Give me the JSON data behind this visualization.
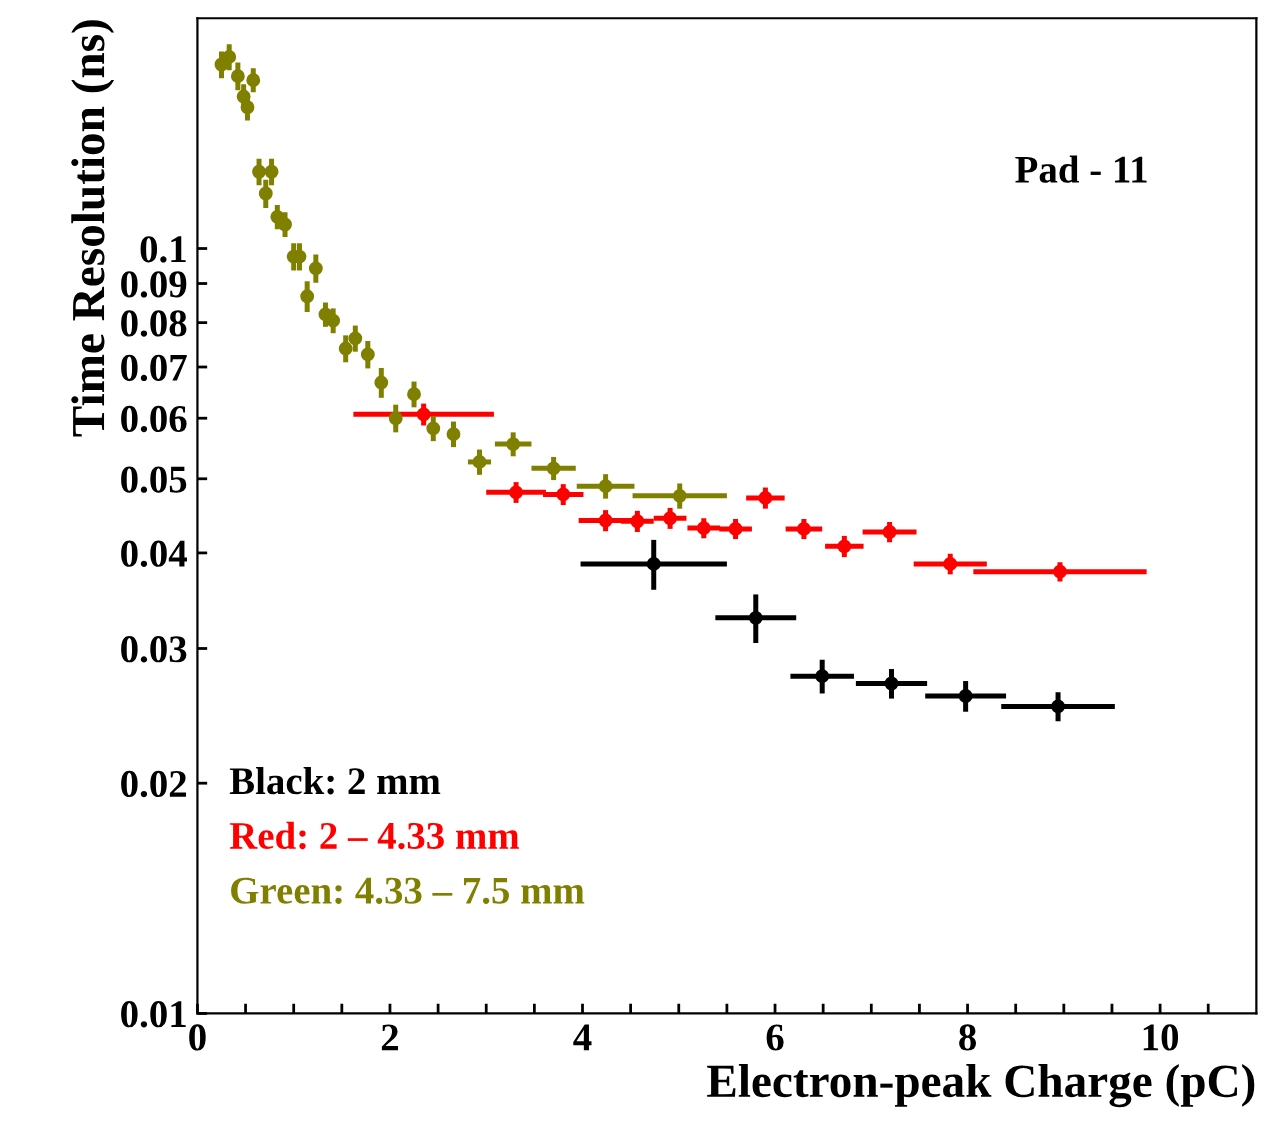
{
  "chart_data": {
    "type": "scatter",
    "xlabel": "Electron-peak Charge (pC)",
    "ylabel": "Time Resolution (ns)",
    "annotations": [
      "Pad - 11"
    ],
    "log": "y",
    "xlim": [
      0,
      11
    ],
    "ylim": [
      0.01,
      0.2
    ],
    "xticks": [
      0,
      {
        "value": 0.5,
        "label": null
      },
      {
        "value": 1,
        "label": null
      },
      {
        "value": 1.5,
        "label": null
      },
      2,
      {
        "value": 2.5,
        "label": null
      },
      {
        "value": 3,
        "label": null
      },
      {
        "value": 3.5,
        "label": null
      },
      4,
      {
        "value": 4.5,
        "label": null
      },
      {
        "value": 5,
        "label": null
      },
      {
        "value": 5.5,
        "label": null
      },
      6,
      {
        "value": 6.5,
        "label": null
      },
      {
        "value": 7,
        "label": null
      },
      {
        "value": 7.5,
        "label": null
      },
      8,
      {
        "value": 8.5,
        "label": null
      },
      {
        "value": 9,
        "label": null
      },
      {
        "value": 9.5,
        "label": null
      },
      10,
      {
        "value": 10.5,
        "label": null
      }
    ],
    "yticks": [
      0.01,
      0.02,
      0.03,
      0.04,
      0.05,
      0.06,
      0.07,
      0.08,
      0.09,
      0.1
    ],
    "grid": false,
    "legend": "bottom left",
    "marker": "circle",
    "series": [
      {
        "name": "Black: 2 mm",
        "color": "#000000",
        "x": [
          4.74,
          5.8,
          6.49,
          7.21,
          7.98,
          8.94
        ],
        "values": [
          0.0387,
          0.0329,
          0.0276,
          0.027,
          0.026,
          0.0252
        ],
        "errors": [
          0.0029,
          0.0024,
          0.0014,
          0.0012,
          0.0012,
          0.0011
        ],
        "xerrors": [
          0.76,
          0.42,
          0.33,
          0.37,
          0.42,
          0.59
        ]
      },
      {
        "name": "Red: 2 – 4.33 mm",
        "color": "#ff0000",
        "x": [
          2.35,
          3.31,
          3.8,
          4.24,
          4.57,
          4.91,
          5.26,
          5.59,
          5.9,
          6.3,
          6.72,
          7.19,
          7.82,
          8.96
        ],
        "values": [
          0.0607,
          0.048,
          0.0477,
          0.0441,
          0.044,
          0.0444,
          0.0431,
          0.043,
          0.0472,
          0.043,
          0.0408,
          0.0426,
          0.0387,
          0.0378
        ],
        "errors": [
          0.002,
          0.0015,
          0.0015,
          0.0014,
          0.0014,
          0.0014,
          0.0013,
          0.0013,
          0.0015,
          0.0013,
          0.0013,
          0.0013,
          0.0012,
          0.0011
        ],
        "xerrors": [
          0.73,
          0.31,
          0.21,
          0.28,
          0.17,
          0.17,
          0.17,
          0.17,
          0.2,
          0.19,
          0.2,
          0.28,
          0.38,
          0.9
        ]
      },
      {
        "name": "Green: 4.33 – 7.5 mm",
        "color": "#808000",
        "x": [
          0.25,
          0.33,
          0.42,
          0.48,
          0.52,
          0.58,
          0.64,
          0.71,
          0.77,
          0.83,
          0.91,
          1.0,
          1.06,
          1.14,
          1.23,
          1.33,
          1.41,
          1.54,
          1.64,
          1.77,
          1.91,
          2.06,
          2.25,
          2.45,
          2.66,
          2.93,
          3.28,
          3.7,
          4.24,
          5.01
        ],
        "values": [
          0.174,
          0.178,
          0.168,
          0.158,
          0.153,
          0.166,
          0.126,
          0.118,
          0.126,
          0.11,
          0.1075,
          0.0976,
          0.0976,
          0.0866,
          0.0942,
          0.082,
          0.0805,
          0.074,
          0.0763,
          0.0727,
          0.0668,
          0.06,
          0.0645,
          0.0582,
          0.0572,
          0.0526,
          0.0555,
          0.0516,
          0.0489,
          0.0475
        ],
        "errors": [
          0.007,
          0.007,
          0.007,
          0.006,
          0.006,
          0.006,
          0.005,
          0.005,
          0.005,
          0.004,
          0.004,
          0.004,
          0.004,
          0.004,
          0.004,
          0.003,
          0.003,
          0.003,
          0.003,
          0.003,
          0.003,
          0.0025,
          0.0025,
          0.0022,
          0.0022,
          0.002,
          0.002,
          0.0018,
          0.0018,
          0.0018
        ],
        "xerrors": [
          null,
          null,
          null,
          null,
          null,
          null,
          null,
          null,
          null,
          null,
          null,
          null,
          null,
          null,
          null,
          null,
          null,
          null,
          null,
          null,
          null,
          null,
          null,
          null,
          null,
          0.12,
          0.19,
          0.23,
          0.3,
          0.49
        ]
      }
    ]
  }
}
